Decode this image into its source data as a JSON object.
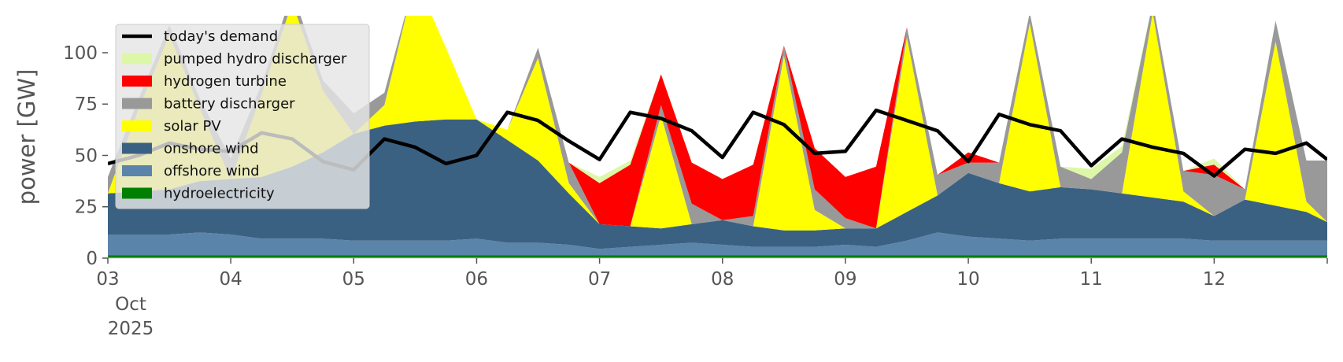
{
  "chart_data": {
    "type": "area",
    "ylabel": "power [GW]",
    "ylim": [
      0,
      118
    ],
    "x_range": [
      0,
      9.92
    ],
    "x_ticks": [
      {
        "x": 0,
        "label": "03",
        "sub": [
          "Oct",
          "2025"
        ]
      },
      {
        "x": 1,
        "label": "04"
      },
      {
        "x": 2,
        "label": "05"
      },
      {
        "x": 3,
        "label": "06"
      },
      {
        "x": 4,
        "label": "07"
      },
      {
        "x": 5,
        "label": "08"
      },
      {
        "x": 6,
        "label": "09"
      },
      {
        "x": 7,
        "label": "10"
      },
      {
        "x": 8,
        "label": "11"
      },
      {
        "x": 9,
        "label": "12"
      }
    ],
    "y_ticks": [
      0,
      25,
      50,
      75,
      100
    ],
    "legend_position": "top-left",
    "x": [
      0,
      0.25,
      0.5,
      0.75,
      1,
      1.25,
      1.5,
      1.75,
      2,
      2.25,
      2.5,
      2.75,
      3,
      3.25,
      3.5,
      3.75,
      4,
      4.25,
      4.5,
      4.75,
      5,
      5.25,
      5.5,
      5.75,
      6,
      6.25,
      6.5,
      6.75,
      7,
      7.25,
      7.5,
      7.75,
      8,
      8.25,
      8.5,
      8.75,
      9,
      9.25,
      9.5,
      9.75,
      9.92
    ],
    "series": [
      {
        "name": "hydroelectricity",
        "color": "#008000",
        "values": [
          1.5,
          1.5,
          1.5,
          1.5,
          1.5,
          1.5,
          1.5,
          1.5,
          1.5,
          1.5,
          1.5,
          1.5,
          1.5,
          1.5,
          1.5,
          1.5,
          1.5,
          1.5,
          1.5,
          1.5,
          1.5,
          1.5,
          1.5,
          1.5,
          1.5,
          1.5,
          1.5,
          1.5,
          1.5,
          1.5,
          1.5,
          1.5,
          1.5,
          1.5,
          1.5,
          1.5,
          1.5,
          1.5,
          1.5,
          1.5,
          1.5
        ]
      },
      {
        "name": "offshore wind",
        "color": "#5b84aa",
        "values": [
          10,
          10,
          10,
          11,
          10,
          8,
          8,
          8,
          7,
          7,
          7,
          7,
          8,
          6,
          6,
          5,
          3,
          4,
          5,
          6,
          5,
          4,
          4,
          4,
          5,
          4,
          7,
          11,
          9,
          8,
          7,
          8,
          8,
          8,
          8,
          8,
          7,
          7,
          7,
          7,
          7
        ]
      },
      {
        "name": "onshore wind",
        "color": "#3b6182",
        "values": [
          20,
          21,
          22,
          25,
          27,
          30,
          35,
          42,
          52,
          56,
          58,
          59,
          58,
          50,
          40,
          25,
          12,
          10,
          8,
          9,
          12,
          10,
          8,
          8,
          8,
          9,
          14,
          18,
          31,
          27,
          24,
          25,
          24,
          22,
          20,
          18,
          12,
          20,
          17,
          14,
          9
        ]
      },
      {
        "name": "solar PV",
        "color": "#ffff00",
        "values": [
          0,
          40,
          75,
          35,
          0,
          40,
          80,
          30,
          0,
          10,
          70,
          35,
          0,
          5,
          50,
          5,
          0,
          0,
          55,
          0,
          0,
          0,
          85,
          10,
          0,
          0,
          85,
          0,
          0,
          0,
          82,
          0,
          0,
          0,
          90,
          5,
          0,
          0,
          80,
          5,
          0
        ]
      },
      {
        "name": "battery discharger",
        "color": "#999999",
        "values": [
          8,
          5,
          5,
          5,
          10,
          5,
          5,
          5,
          10,
          6,
          0,
          0,
          0,
          0,
          5,
          10,
          0,
          0,
          5,
          10,
          0,
          5,
          5,
          10,
          5,
          0,
          5,
          10,
          5,
          10,
          5,
          10,
          5,
          20,
          5,
          10,
          20,
          5,
          10,
          20,
          30
        ]
      },
      {
        "name": "hydrogen turbine",
        "color": "#ff0000",
        "values": [
          0,
          0,
          0,
          0,
          0,
          0,
          0,
          0,
          0,
          0,
          0,
          0,
          0,
          0,
          0,
          0,
          20,
          30,
          15,
          20,
          20,
          25,
          0,
          20,
          20,
          30,
          0,
          0,
          5,
          0,
          0,
          0,
          0,
          0,
          0,
          0,
          5,
          0,
          0,
          0,
          0
        ]
      },
      {
        "name": "pumped hydro discharger",
        "color": "#ddf7a8",
        "values": [
          0,
          0,
          0,
          0,
          0,
          0,
          0,
          0,
          0,
          0,
          0,
          0,
          0,
          0,
          0,
          0,
          3,
          2,
          0,
          0,
          0,
          0,
          0,
          0,
          0,
          0,
          0,
          0,
          0,
          0,
          0,
          0,
          5,
          3,
          0,
          0,
          3,
          0,
          0,
          0,
          0
        ]
      }
    ],
    "demand": {
      "name": "today's demand",
      "color": "#000000",
      "values": [
        46,
        50,
        56,
        53,
        52,
        61,
        58,
        47,
        43,
        58,
        54,
        46,
        50,
        71,
        67,
        57,
        48,
        71,
        68,
        62,
        49,
        71,
        65,
        51,
        52,
        72,
        67,
        62,
        47,
        70,
        65,
        62,
        45,
        58,
        54,
        51,
        40,
        53,
        51,
        56,
        48
      ]
    },
    "legend": [
      "today's demand",
      "pumped hydro discharger",
      "hydrogen turbine",
      "battery discharger",
      "solar PV",
      "onshore wind",
      "offshore wind",
      "hydroelectricity"
    ]
  }
}
